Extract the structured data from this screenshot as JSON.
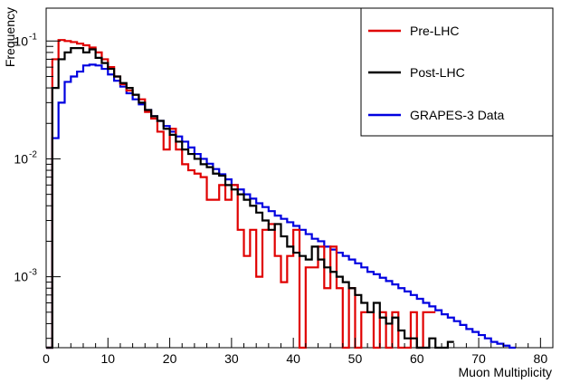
{
  "chart_data": {
    "type": "histogram",
    "xlabel": "Muon Multiplicity",
    "ylabel": "Frequency",
    "xlim": [
      0,
      82
    ],
    "ylim": [
      0.00025,
      0.19
    ],
    "yscale": "log",
    "bin_width": 1,
    "grid": false,
    "legend_position": "top-right",
    "x_ticks": [
      0,
      10,
      20,
      30,
      40,
      50,
      60,
      70,
      80
    ],
    "y_ticks": [
      {
        "value": 0.001,
        "base": "10",
        "exp": "-3"
      },
      {
        "value": 0.01,
        "base": "10",
        "exp": "-2"
      },
      {
        "value": 0.1,
        "base": "10",
        "exp": "-1"
      }
    ],
    "series": [
      {
        "name": "Pre-LHC",
        "color": "#e00000",
        "x_start": 0,
        "values": [
          0.00025,
          0.07,
          0.102,
          0.1,
          0.098,
          0.095,
          0.092,
          0.088,
          0.08,
          0.07,
          0.06,
          0.05,
          0.043,
          0.038,
          0.035,
          0.032,
          0.025,
          0.022,
          0.017,
          0.012,
          0.018,
          0.012,
          0.009,
          0.008,
          0.0075,
          0.007,
          0.0045,
          0.0045,
          0.006,
          0.0045,
          0.006,
          0.0025,
          0.0015,
          0.0025,
          0.001,
          0.0025,
          0.0028,
          0.0015,
          0.0009,
          0.0015,
          0.0025,
          0.00025,
          0.0012,
          0.0012,
          0.0018,
          0.0008,
          0.0018,
          0.0008,
          0.00025,
          0.0008,
          0.00025,
          0.0005,
          0.0005,
          0.00025,
          0.0005,
          0.00025,
          0.0005,
          0.00025,
          0.00025,
          0.0005,
          0.00025,
          0.0005,
          0.0005
        ]
      },
      {
        "name": "Post-LHC",
        "color": "#000000",
        "x_start": 0,
        "values": [
          0.00025,
          0.04,
          0.07,
          0.08,
          0.087,
          0.087,
          0.08,
          0.085,
          0.072,
          0.065,
          0.058,
          0.05,
          0.044,
          0.04,
          0.035,
          0.03,
          0.026,
          0.023,
          0.021,
          0.018,
          0.016,
          0.014,
          0.012,
          0.011,
          0.01,
          0.009,
          0.0085,
          0.0075,
          0.0072,
          0.006,
          0.0055,
          0.005,
          0.0045,
          0.004,
          0.0035,
          0.003,
          0.0025,
          0.0028,
          0.0022,
          0.0018,
          0.0016,
          0.0015,
          0.0014,
          0.0018,
          0.0014,
          0.0012,
          0.0011,
          0.001,
          0.0009,
          0.0008,
          0.0007,
          0.0006,
          0.0005,
          0.0006,
          0.00045,
          0.0004,
          0.00045,
          0.00035,
          0.0003,
          0.0003,
          0.00025,
          0.00025,
          0.0003,
          0.00025,
          0.00025,
          0.00028
        ]
      },
      {
        "name": "GRAPES-3 Data",
        "color": "#0000e0",
        "x_start": 0,
        "values": [
          0.00025,
          0.015,
          0.03,
          0.045,
          0.05,
          0.055,
          0.062,
          0.063,
          0.062,
          0.058,
          0.052,
          0.046,
          0.041,
          0.036,
          0.032,
          0.029,
          0.026,
          0.023,
          0.021,
          0.019,
          0.017,
          0.0155,
          0.014,
          0.0125,
          0.011,
          0.01,
          0.0091,
          0.0082,
          0.0074,
          0.0067,
          0.006,
          0.0055,
          0.005,
          0.0046,
          0.0042,
          0.0039,
          0.0036,
          0.0033,
          0.0031,
          0.0029,
          0.0027,
          0.0025,
          0.0023,
          0.0021,
          0.002,
          0.0018,
          0.0017,
          0.0016,
          0.0015,
          0.0014,
          0.0013,
          0.0012,
          0.0011,
          0.00105,
          0.00098,
          0.00092,
          0.00086,
          0.0008,
          0.00075,
          0.0007,
          0.00065,
          0.0006,
          0.00056,
          0.00052,
          0.00048,
          0.00045,
          0.00042,
          0.00039,
          0.00036,
          0.00034,
          0.00032,
          0.0003,
          0.00028,
          0.00027,
          0.00026,
          0.00025
        ]
      }
    ]
  }
}
